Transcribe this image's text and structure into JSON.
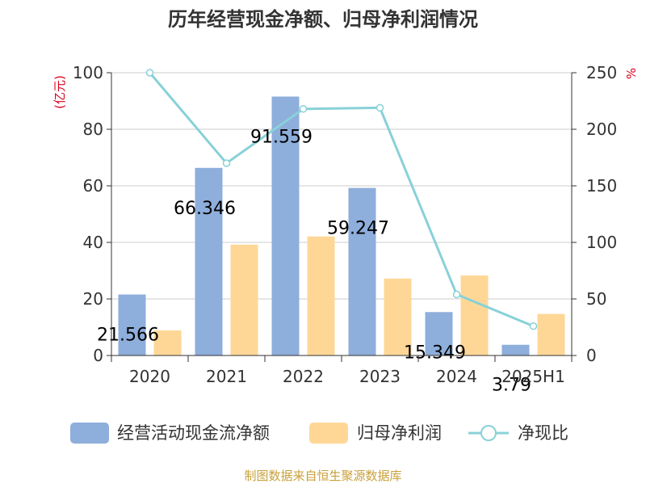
{
  "chart_data": {
    "type": "bar",
    "title": "历年经营现金净额、归母净利润情况",
    "categories": [
      "2020",
      "2021",
      "2022",
      "2023",
      "2024",
      "2025H1"
    ],
    "y_left": {
      "label": "(亿元)",
      "ylim": [
        0,
        100
      ],
      "ticks": [
        0,
        20,
        40,
        60,
        80,
        100
      ]
    },
    "y_right": {
      "label": "%",
      "ylim": [
        0,
        250
      ],
      "ticks": [
        0,
        50,
        100,
        150,
        200,
        250
      ]
    },
    "series": [
      {
        "name": "经营活动现金流净额",
        "kind": "bar",
        "axis": "left",
        "color": "#8eaedb",
        "values": [
          21.566,
          66.346,
          91.559,
          59.247,
          15.349,
          3.79
        ],
        "labels": [
          "21.566",
          "66.346",
          "91.559",
          "59.247",
          "15.349",
          "3.79"
        ]
      },
      {
        "name": "归母净利润",
        "kind": "bar",
        "axis": "left",
        "color": "#fed797",
        "values": [
          8.9,
          39.2,
          42.1,
          27.2,
          28.3,
          14.7
        ]
      },
      {
        "name": "净现比",
        "kind": "line",
        "axis": "right",
        "color": "#88d1d8",
        "values": [
          250,
          170,
          218,
          219,
          54,
          26
        ]
      }
    ],
    "grid": true,
    "legend_position": "bottom"
  },
  "source": "制图数据来自恒生聚源数据库",
  "colors": {
    "axis_label_red": "#d9001b",
    "source_text": "#c9a13b"
  }
}
